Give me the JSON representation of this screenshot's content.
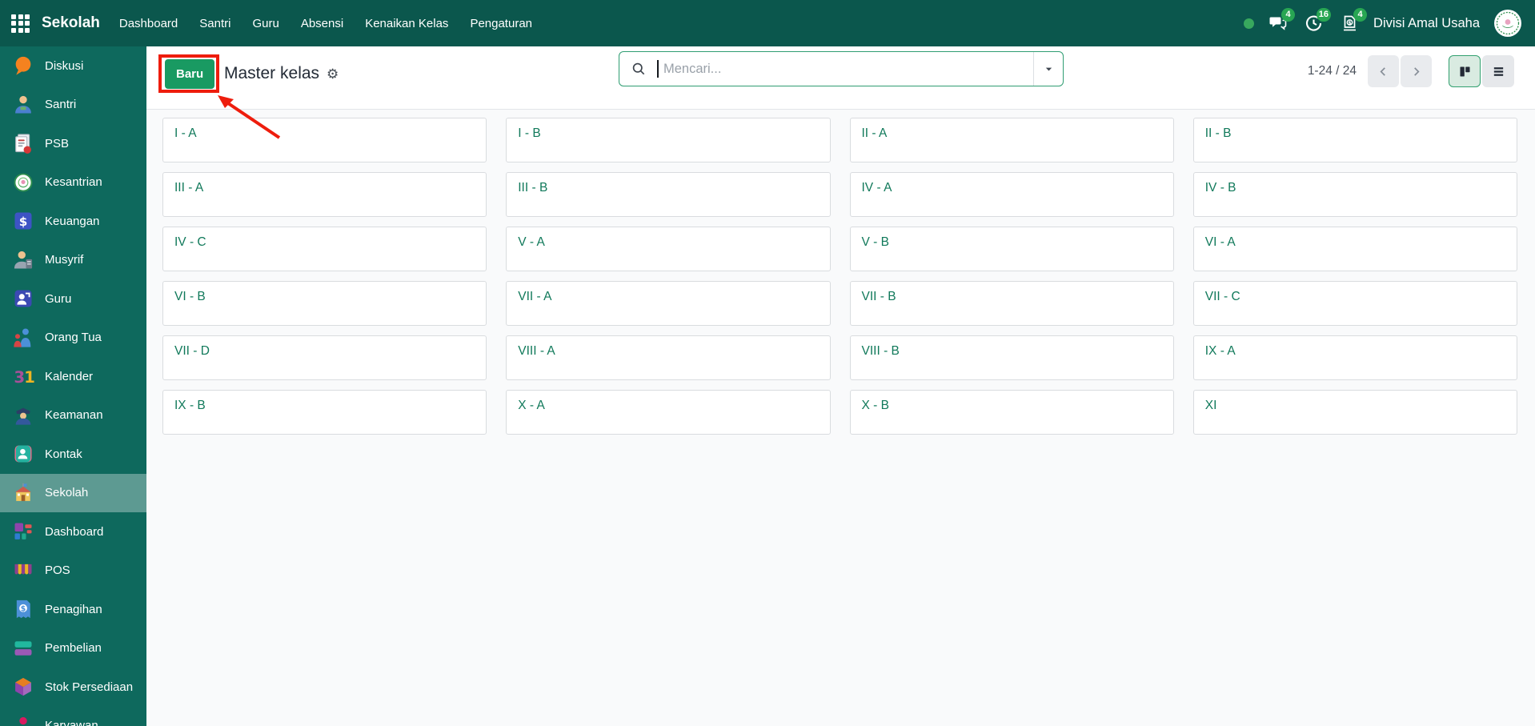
{
  "topbar": {
    "app_name": "Sekolah",
    "menus": [
      "Dashboard",
      "Santri",
      "Guru",
      "Absensi",
      "Kenaikan Kelas",
      "Pengaturan"
    ],
    "notifications": [
      {
        "icon": "messages-icon",
        "badge": "4"
      },
      {
        "icon": "activities-clock-icon",
        "badge": "16"
      },
      {
        "icon": "money-icon",
        "badge": "4"
      }
    ],
    "user_name": "Divisi Amal Usaha"
  },
  "sidebar": {
    "items": [
      {
        "label": "Diskusi",
        "icon": "discuss-icon"
      },
      {
        "label": "Santri",
        "icon": "student-icon"
      },
      {
        "label": "PSB",
        "icon": "psb-document-icon"
      },
      {
        "label": "Kesantrian",
        "icon": "kesantrian-seal-icon"
      },
      {
        "label": "Keuangan",
        "icon": "finance-dollar-icon"
      },
      {
        "label": "Musyrif",
        "icon": "musyrif-person-icon"
      },
      {
        "label": "Guru",
        "icon": "teacher-icon"
      },
      {
        "label": "Orang Tua",
        "icon": "parents-icon"
      },
      {
        "label": "Kalender",
        "icon": "calendar-31-icon"
      },
      {
        "label": "Keamanan",
        "icon": "security-guard-icon"
      },
      {
        "label": "Kontak",
        "icon": "contacts-icon"
      },
      {
        "label": "Sekolah",
        "icon": "school-building-icon",
        "active": true
      },
      {
        "label": "Dashboard",
        "icon": "dashboard-tiles-icon"
      },
      {
        "label": "POS",
        "icon": "pos-awning-icon"
      },
      {
        "label": "Penagihan",
        "icon": "billing-receipt-icon"
      },
      {
        "label": "Pembelian",
        "icon": "purchase-icon"
      },
      {
        "label": "Stok Persediaan",
        "icon": "inventory-cube-icon"
      },
      {
        "label": "Karyawan",
        "icon": "employees-icon"
      }
    ]
  },
  "control_panel": {
    "new_button_label": "Baru",
    "title": "Master kelas",
    "settings_icon": "gear-icon",
    "search_icon": "search-icon",
    "search_dropdown_icon": "chevron-down-icon",
    "search_placeholder": "Mencari...",
    "pager_text": "1-24 / 24",
    "pager_icons": [
      "chevron-left-icon",
      "chevron-right-icon"
    ],
    "view_switcher": [
      {
        "icon": "kanban-view-icon",
        "active": true
      },
      {
        "icon": "list-view-icon",
        "active": false
      }
    ]
  },
  "cards": [
    "I - A",
    "I - B",
    "II - A",
    "II - B",
    "III - A",
    "III - B",
    "IV - A",
    "IV - B",
    "IV - C",
    "V - A",
    "V - B",
    "VI - A",
    "VI - B",
    "VII - A",
    "VII - B",
    "VII - C",
    "VII - D",
    "VIII - A",
    "VIII - B",
    "IX - A",
    "IX - B",
    "X - A",
    "X - B",
    "XI"
  ],
  "annotation": {
    "type": "highlight-box-with-arrow",
    "target": "Baru button",
    "color": "#ee1d0d"
  },
  "colors": {
    "topbar_bg": "#0b574d",
    "sidebar_bg": "#0e695d",
    "accent_green": "#199a62",
    "badge_green": "#28a653",
    "card_text_green": "#10795a",
    "search_border_green": "#2f9d72",
    "annotation_red": "#ee1d0d"
  }
}
